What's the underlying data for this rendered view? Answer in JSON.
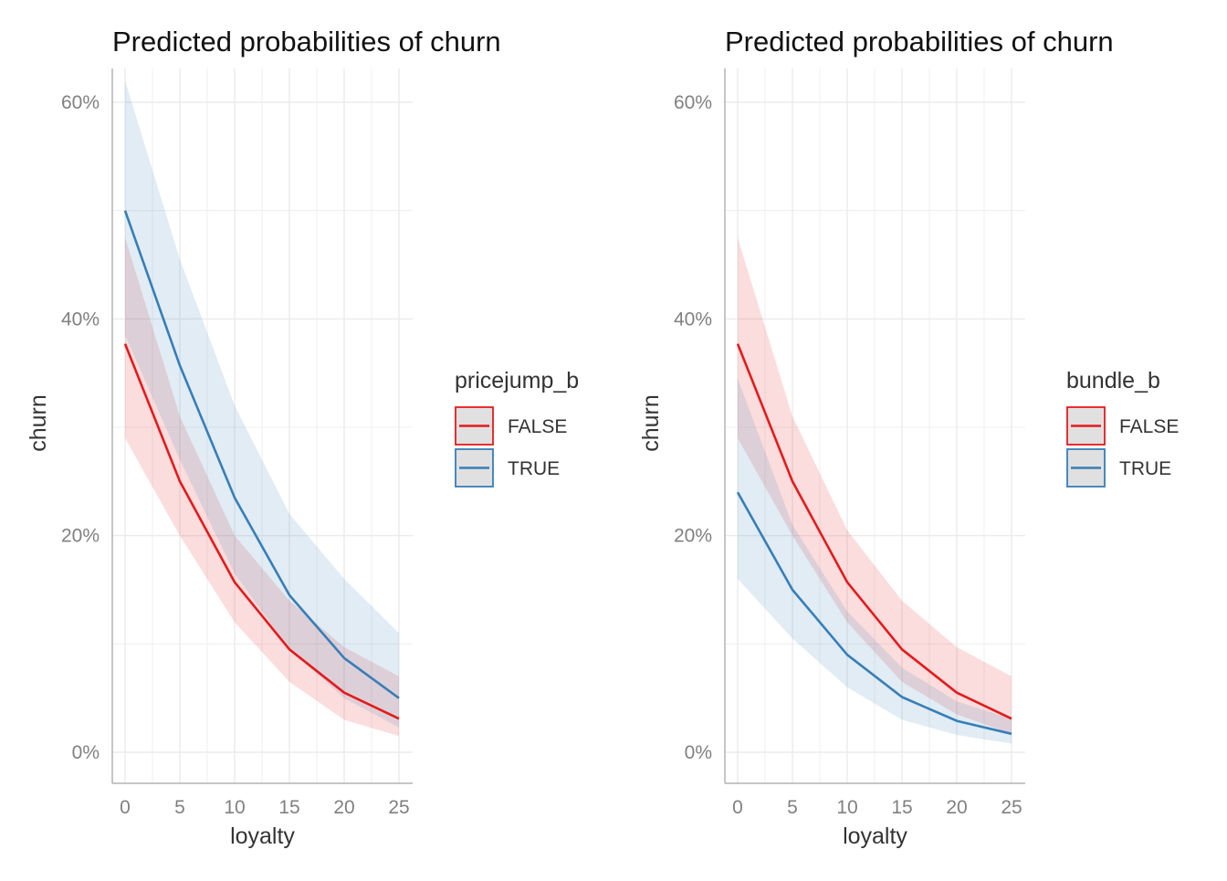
{
  "colors": {
    "FALSE": "#e41a1c",
    "TRUE": "#377eb8",
    "legend_key_bg": "#e0e0e0",
    "grid": "#ebebeb",
    "axis": "#b3b3b3"
  },
  "chart_data": [
    {
      "type": "line",
      "title": "Predicted probabilities of churn",
      "xlabel": "loyalty",
      "ylabel": "churn",
      "xlim": [
        0,
        25
      ],
      "ylim": [
        0,
        0.6
      ],
      "x_ticks": [
        0,
        5,
        10,
        15,
        20,
        25
      ],
      "y_ticks": [
        0,
        0.2,
        0.4,
        0.6
      ],
      "y_tick_labels": [
        "0%",
        "20%",
        "40%",
        "60%"
      ],
      "legend": {
        "title": "pricejump_b",
        "position": "right"
      },
      "x": [
        0,
        5,
        10,
        15,
        20,
        25
      ],
      "series": [
        {
          "name": "FALSE",
          "key": "FALSE",
          "values": [
            0.377,
            0.25,
            0.157,
            0.095,
            0.055,
            0.031
          ],
          "lower": [
            0.29,
            0.2,
            0.12,
            0.065,
            0.03,
            0.015
          ],
          "upper": [
            0.475,
            0.31,
            0.2,
            0.14,
            0.097,
            0.07
          ]
        },
        {
          "name": "TRUE",
          "key": "TRUE",
          "values": [
            0.5,
            0.357,
            0.235,
            0.145,
            0.087,
            0.05
          ],
          "lower": [
            0.385,
            0.27,
            0.165,
            0.095,
            0.05,
            0.023
          ],
          "upper": [
            0.62,
            0.455,
            0.32,
            0.22,
            0.16,
            0.11
          ]
        }
      ]
    },
    {
      "type": "line",
      "title": "Predicted probabilities of churn",
      "xlabel": "loyalty",
      "ylabel": "churn",
      "xlim": [
        0,
        25
      ],
      "ylim": [
        0,
        0.6
      ],
      "x_ticks": [
        0,
        5,
        10,
        15,
        20,
        25
      ],
      "y_ticks": [
        0,
        0.2,
        0.4,
        0.6
      ],
      "y_tick_labels": [
        "0%",
        "20%",
        "40%",
        "60%"
      ],
      "legend": {
        "title": "bundle_b",
        "position": "right"
      },
      "x": [
        0,
        5,
        10,
        15,
        20,
        25
      ],
      "series": [
        {
          "name": "FALSE",
          "key": "FALSE",
          "values": [
            0.377,
            0.25,
            0.157,
            0.095,
            0.055,
            0.031
          ],
          "lower": [
            0.29,
            0.2,
            0.12,
            0.065,
            0.035,
            0.017
          ],
          "upper": [
            0.475,
            0.31,
            0.205,
            0.14,
            0.097,
            0.07
          ]
        },
        {
          "name": "TRUE",
          "key": "TRUE",
          "values": [
            0.24,
            0.15,
            0.09,
            0.051,
            0.029,
            0.017
          ],
          "lower": [
            0.16,
            0.105,
            0.06,
            0.03,
            0.016,
            0.008
          ],
          "upper": [
            0.345,
            0.21,
            0.13,
            0.078,
            0.047,
            0.031
          ]
        }
      ]
    }
  ]
}
